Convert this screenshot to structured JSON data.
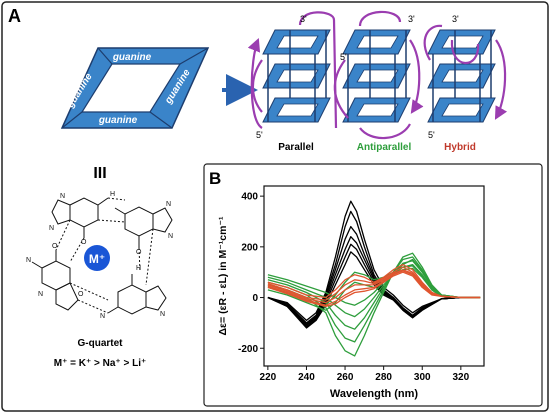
{
  "panel_a": {
    "label": "A",
    "guanine_label": "guanine",
    "equivalence": "III",
    "structures": [
      {
        "name": "Parallel",
        "color": "#000000",
        "top_label": "3'",
        "bottom_label": "5'"
      },
      {
        "name": "Antiparallel",
        "color": "#2e9e3c",
        "top_label": "3'",
        "side_label": "5'"
      },
      {
        "name": "Hybrid",
        "color": "#c0392b",
        "top_label": "3'",
        "bottom_label": "5'"
      }
    ],
    "quartet": {
      "metal_label": "M⁺",
      "atom_labels": [
        "N",
        "N",
        "N",
        "N",
        "N",
        "N",
        "N",
        "N",
        "H",
        "H",
        "O",
        "O",
        "O",
        "O"
      ],
      "title": "G-quartet",
      "order": "M⁺ = K⁺ > Na⁺ > Li⁺"
    }
  },
  "panel_b": {
    "label": "B",
    "chart_data": {
      "type": "line",
      "xlabel": "Wavelength (nm)",
      "ylabel": "Δε= (εR - εL) in M⁻¹cm⁻¹",
      "xlim": [
        218,
        332
      ],
      "ylim": [
        -270,
        440
      ],
      "xticks": [
        220,
        240,
        260,
        280,
        300,
        320
      ],
      "yticks": [
        -200,
        0,
        200,
        400
      ],
      "grid": false,
      "series": [
        {
          "color": "#000000",
          "x": [
            220,
            230,
            240,
            245,
            250,
            255,
            260,
            263,
            266,
            270,
            275,
            280,
            285,
            290,
            295,
            300,
            310,
            320,
            330
          ],
          "y": [
            0,
            -20,
            -90,
            -60,
            20,
            160,
            320,
            380,
            340,
            230,
            110,
            40,
            10,
            -30,
            -60,
            -35,
            -5,
            0,
            0
          ]
        },
        {
          "color": "#000000",
          "x": [
            220,
            230,
            240,
            245,
            250,
            255,
            260,
            263,
            266,
            270,
            275,
            280,
            285,
            290,
            295,
            300,
            310,
            320,
            330
          ],
          "y": [
            0,
            -25,
            -100,
            -70,
            10,
            130,
            280,
            340,
            300,
            200,
            90,
            30,
            0,
            -40,
            -70,
            -40,
            -5,
            0,
            0
          ]
        },
        {
          "color": "#000000",
          "x": [
            220,
            230,
            240,
            245,
            250,
            255,
            260,
            263,
            266,
            270,
            275,
            280,
            285,
            290,
            295,
            300,
            310,
            320,
            330
          ],
          "y": [
            0,
            -30,
            -105,
            -75,
            0,
            110,
            230,
            280,
            250,
            170,
            80,
            25,
            -5,
            -45,
            -75,
            -45,
            -5,
            0,
            0
          ]
        },
        {
          "color": "#000000",
          "x": [
            220,
            230,
            240,
            245,
            250,
            255,
            260,
            263,
            266,
            270,
            275,
            280,
            285,
            290,
            295,
            300,
            310,
            320,
            330
          ],
          "y": [
            0,
            -30,
            -110,
            -80,
            -10,
            90,
            190,
            240,
            215,
            150,
            70,
            20,
            -5,
            -45,
            -75,
            -45,
            -5,
            0,
            0
          ]
        },
        {
          "color": "#000000",
          "x": [
            220,
            230,
            240,
            245,
            250,
            255,
            260,
            263,
            266,
            270,
            275,
            280,
            285,
            290,
            295,
            300,
            310,
            320,
            330
          ],
          "y": [
            0,
            -35,
            -115,
            -85,
            -20,
            70,
            160,
            210,
            190,
            130,
            60,
            15,
            -5,
            -50,
            -80,
            -50,
            -5,
            0,
            0
          ]
        },
        {
          "color": "#000000",
          "x": [
            220,
            230,
            240,
            245,
            250,
            255,
            260,
            263,
            266,
            270,
            275,
            280,
            285,
            290,
            295,
            300,
            310,
            320,
            330
          ],
          "y": [
            0,
            -35,
            -120,
            -90,
            -30,
            50,
            130,
            180,
            160,
            110,
            50,
            10,
            -10,
            -50,
            -80,
            -50,
            -5,
            0,
            0
          ]
        },
        {
          "color": "#2e9e3c",
          "x": [
            220,
            230,
            240,
            250,
            255,
            260,
            265,
            270,
            275,
            280,
            285,
            290,
            295,
            300,
            305,
            310,
            320,
            330
          ],
          "y": [
            50,
            30,
            0,
            -60,
            -150,
            -210,
            -230,
            -150,
            -60,
            20,
            100,
            160,
            175,
            120,
            50,
            10,
            0,
            0
          ]
        },
        {
          "color": "#2e9e3c",
          "x": [
            220,
            230,
            240,
            250,
            255,
            260,
            265,
            270,
            275,
            280,
            285,
            290,
            295,
            300,
            305,
            310,
            320,
            330
          ],
          "y": [
            60,
            40,
            10,
            -40,
            -110,
            -160,
            -175,
            -110,
            -40,
            30,
            100,
            150,
            160,
            110,
            45,
            10,
            0,
            0
          ]
        },
        {
          "color": "#2e9e3c",
          "x": [
            220,
            230,
            240,
            250,
            255,
            260,
            265,
            270,
            275,
            280,
            285,
            290,
            295,
            300,
            305,
            310,
            320,
            330
          ],
          "y": [
            70,
            50,
            20,
            -20,
            -70,
            -110,
            -125,
            -80,
            -20,
            40,
            95,
            135,
            145,
            100,
            40,
            10,
            0,
            0
          ]
        },
        {
          "color": "#2e9e3c",
          "x": [
            220,
            230,
            240,
            250,
            255,
            260,
            265,
            270,
            275,
            280,
            285,
            290,
            295,
            300,
            305,
            310,
            320,
            330
          ],
          "y": [
            80,
            60,
            30,
            0,
            -30,
            -60,
            -75,
            -45,
            0,
            50,
            90,
            120,
            130,
            90,
            35,
            10,
            0,
            0
          ]
        },
        {
          "color": "#2e9e3c",
          "x": [
            220,
            230,
            240,
            250,
            255,
            260,
            265,
            270,
            275,
            280,
            285,
            290,
            295,
            300,
            305,
            310,
            320,
            330
          ],
          "y": [
            90,
            70,
            45,
            20,
            0,
            -20,
            -30,
            -10,
            20,
            60,
            90,
            110,
            115,
            80,
            30,
            5,
            0,
            0
          ]
        },
        {
          "color": "#2e9e3c",
          "x": [
            220,
            230,
            240,
            250,
            255,
            260,
            265,
            270,
            275,
            280,
            285,
            290,
            295,
            300,
            305,
            310,
            320,
            330
          ],
          "y": [
            40,
            20,
            -10,
            -30,
            10,
            60,
            100,
            90,
            70,
            80,
            100,
            120,
            125,
            85,
            30,
            5,
            0,
            0
          ]
        },
        {
          "color": "#2e9e3c",
          "x": [
            220,
            230,
            240,
            250,
            255,
            260,
            265,
            270,
            275,
            280,
            285,
            290,
            295,
            300,
            305,
            310,
            320,
            330
          ],
          "y": [
            30,
            10,
            -20,
            -50,
            -20,
            30,
            60,
            50,
            40,
            60,
            90,
            130,
            150,
            105,
            40,
            5,
            0,
            0
          ]
        },
        {
          "color": "#e0552f",
          "x": [
            220,
            230,
            240,
            250,
            255,
            260,
            265,
            270,
            275,
            280,
            285,
            290,
            295,
            300,
            305,
            310,
            320,
            330
          ],
          "y": [
            60,
            40,
            10,
            0,
            30,
            70,
            90,
            80,
            60,
            80,
            110,
            130,
            110,
            60,
            20,
            5,
            0,
            0
          ]
        },
        {
          "color": "#e0552f",
          "x": [
            220,
            230,
            240,
            250,
            255,
            260,
            265,
            270,
            275,
            280,
            285,
            290,
            295,
            300,
            305,
            310,
            320,
            330
          ],
          "y": [
            55,
            30,
            0,
            -10,
            15,
            50,
            70,
            65,
            55,
            75,
            100,
            120,
            100,
            55,
            20,
            5,
            0,
            0
          ]
        },
        {
          "color": "#e0552f",
          "x": [
            220,
            230,
            240,
            250,
            255,
            260,
            265,
            270,
            275,
            280,
            285,
            290,
            295,
            300,
            305,
            310,
            320,
            330
          ],
          "y": [
            50,
            25,
            -5,
            -20,
            0,
            30,
            50,
            50,
            50,
            70,
            95,
            110,
            95,
            50,
            15,
            5,
            0,
            0
          ]
        },
        {
          "color": "#e0552f",
          "x": [
            220,
            230,
            240,
            250,
            255,
            260,
            265,
            270,
            275,
            280,
            285,
            290,
            295,
            300,
            305,
            310,
            320,
            330
          ],
          "y": [
            45,
            20,
            -10,
            -30,
            -15,
            10,
            30,
            35,
            40,
            65,
            90,
            105,
            90,
            45,
            15,
            5,
            0,
            0
          ]
        },
        {
          "color": "#e0552f",
          "x": [
            220,
            230,
            240,
            250,
            255,
            260,
            265,
            270,
            275,
            280,
            285,
            290,
            295,
            300,
            305,
            310,
            320,
            330
          ],
          "y": [
            40,
            15,
            -15,
            -35,
            -25,
            0,
            20,
            25,
            35,
            60,
            85,
            100,
            85,
            40,
            10,
            5,
            0,
            0
          ]
        }
      ]
    }
  },
  "colors": {
    "guanine_fill": "#3a84c9",
    "guanine_edge": "#1d3d6e",
    "arrow": "#2a63b0",
    "loop": "#9b3db0",
    "metal": "#1a56d6"
  }
}
